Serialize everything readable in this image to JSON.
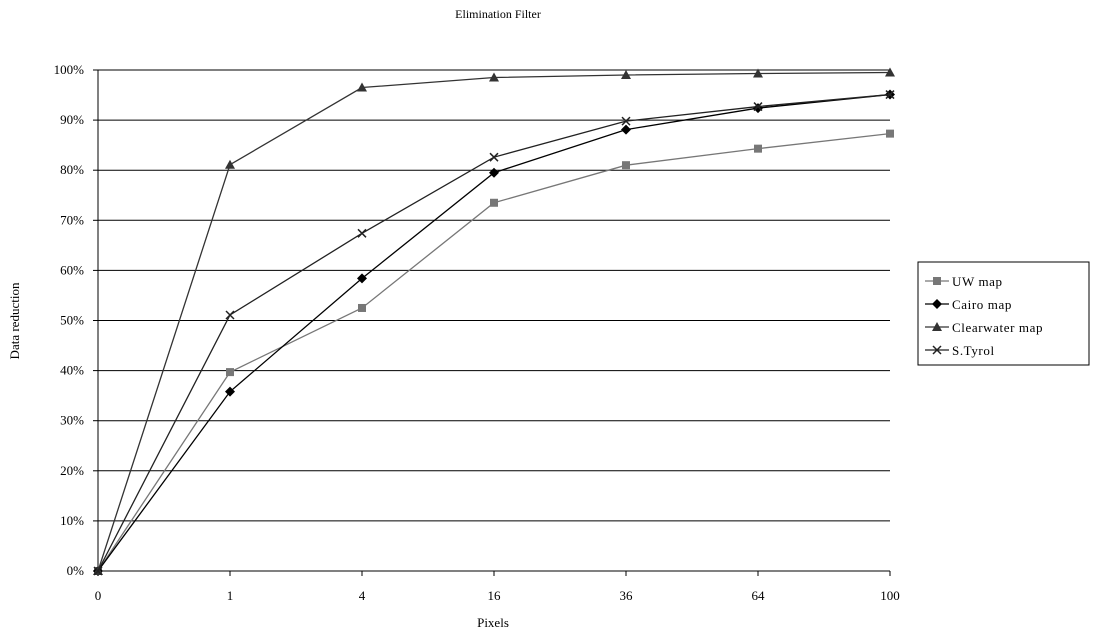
{
  "chart_data": {
    "type": "line",
    "title": "Elimination Filter",
    "xlabel": "Pixels",
    "ylabel": "Data reduction",
    "categories": [
      "0",
      "1",
      "4",
      "16",
      "36",
      "64",
      "100"
    ],
    "y_ticks": [
      "0%",
      "10%",
      "20%",
      "30%",
      "40%",
      "50%",
      "60%",
      "70%",
      "80%",
      "90%",
      "100%"
    ],
    "ylim": [
      0,
      100
    ],
    "grid": "horizontal",
    "legend_position": "right",
    "series": [
      {
        "name": "UW map",
        "marker": "square",
        "color": "#777777",
        "values": [
          0,
          39.7,
          52.5,
          73.5,
          81,
          84.3,
          87.3
        ]
      },
      {
        "name": "Cairo map",
        "marker": "diamond",
        "color": "#000000",
        "values": [
          0,
          35.8,
          58.4,
          79.5,
          88.1,
          92.4,
          95.1
        ]
      },
      {
        "name": "Clearwater map",
        "marker": "triangle",
        "color": "#333333",
        "values": [
          0,
          81.1,
          96.5,
          98.5,
          99,
          99.3,
          99.5
        ]
      },
      {
        "name": "S.Tyrol",
        "marker": "x",
        "color": "#222222",
        "values": [
          0,
          51.1,
          67.4,
          82.6,
          89.8,
          92.7,
          95.1
        ]
      }
    ]
  }
}
